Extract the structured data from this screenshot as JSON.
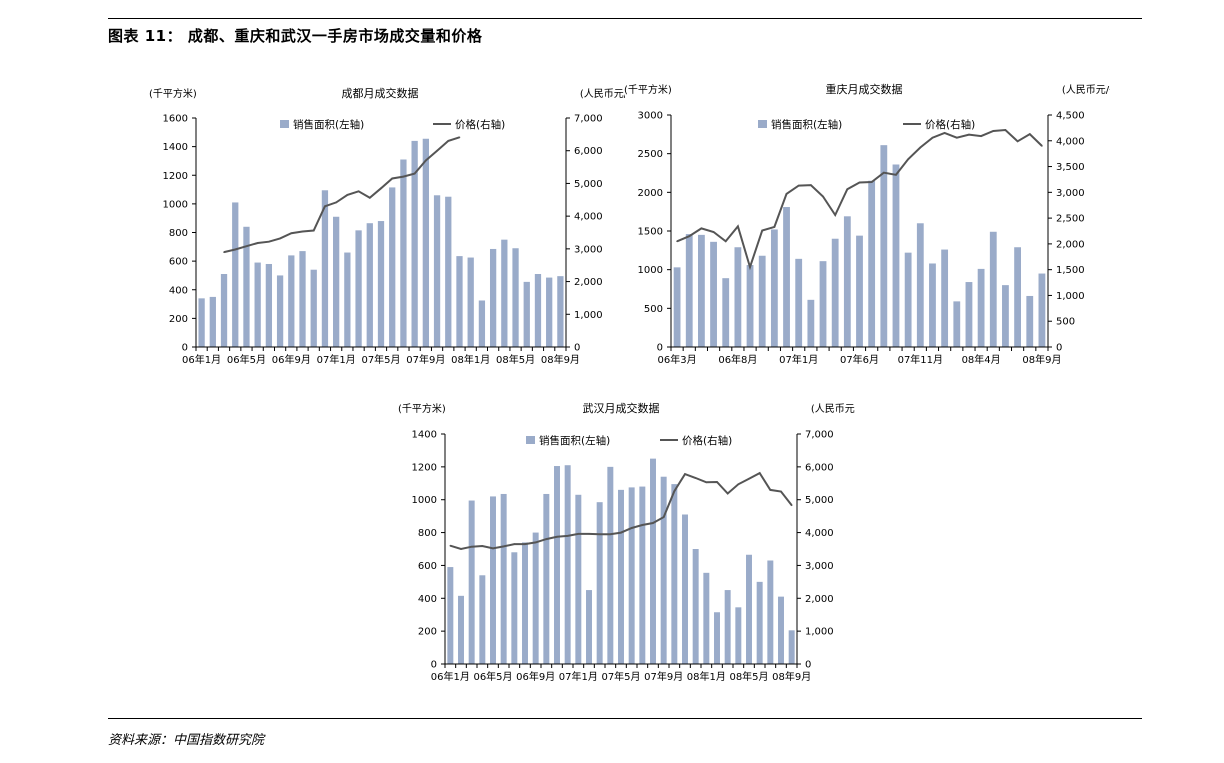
{
  "figure": {
    "title": "图表 11：  成都、重庆和武汉一手房市场成交量和价格",
    "source": "资料来源：中国指数研究院"
  },
  "legend": {
    "bar": "销售面积(左轴)",
    "line": "价格(右轴)"
  },
  "colors": {
    "bar": "#9aabc9",
    "line": "#555555"
  },
  "chart_data": [
    {
      "type": "bar+line",
      "title": "成都月成交数据",
      "ylabel_left": "(千平方米)",
      "ylabel_right": "(人民币元/平方米)",
      "ylim_left": [
        0,
        1600
      ],
      "ylim_right": [
        0,
        7000
      ],
      "yticks_left": [
        "0",
        "200",
        "400",
        "600",
        "800",
        "1000",
        "1200",
        "1400",
        "1600"
      ],
      "yticks_right": [
        "0",
        "1,000",
        "2,000",
        "3,000",
        "4,000",
        "5,000",
        "6,000",
        "7,000"
      ],
      "xtick_labels": [
        "06年1月",
        "06年5月",
        "06年9月",
        "07年1月",
        "07年5月",
        "07年9月",
        "08年1月",
        "08年5月",
        "08年9月"
      ],
      "xtick_every": 4,
      "legend_position": "top-center",
      "categories": [
        "06/01",
        "06/02",
        "06/03",
        "06/04",
        "06/05",
        "06/06",
        "06/07",
        "06/08",
        "06/09",
        "06/10",
        "06/11",
        "06/12",
        "07/01",
        "07/02",
        "07/03",
        "07/04",
        "07/05",
        "07/06",
        "07/07",
        "07/08",
        "07/09",
        "07/10",
        "07/11",
        "07/12",
        "08/01",
        "08/02",
        "08/03",
        "08/04",
        "08/05",
        "08/06",
        "08/07",
        "08/08",
        "08/09"
      ],
      "series": [
        {
          "name": "销售面积(左轴)",
          "axis": "left",
          "kind": "bar",
          "values": [
            340,
            350,
            510,
            1010,
            840,
            590,
            580,
            500,
            640,
            670,
            540,
            1095,
            910,
            660,
            815,
            865,
            880,
            1115,
            1310,
            1440,
            1455,
            1060,
            1050,
            635,
            625,
            325,
            685,
            750,
            690,
            455,
            510,
            485,
            495
          ]
        },
        {
          "name": "价格(右轴)",
          "axis": "right",
          "kind": "line",
          "values": [
            null,
            null,
            2900,
            2980,
            3080,
            3180,
            3220,
            3320,
            3480,
            3530,
            3560,
            4300,
            4420,
            4650,
            4760,
            4560,
            4850,
            5150,
            5210,
            5300,
            5700,
            6000,
            6300,
            6410,
            null,
            null,
            null,
            null,
            null,
            null,
            null,
            null,
            null
          ]
        }
      ]
    },
    {
      "type": "bar+line",
      "title": "重庆月成交数据",
      "ylabel_left": "(千平方米)",
      "ylabel_right": "(人民币元/平方米)",
      "ylim_left": [
        0,
        3000
      ],
      "ylim_right": [
        0,
        4500
      ],
      "yticks_left": [
        "0",
        "500",
        "1000",
        "1500",
        "2000",
        "2500",
        "3000"
      ],
      "yticks_right": [
        "0",
        "500",
        "1,000",
        "1,500",
        "2,000",
        "2,500",
        "3,000",
        "3,500",
        "4,000",
        "4,500"
      ],
      "xtick_labels": [
        "06年3月",
        "06年8月",
        "07年1月",
        "07年6月",
        "07年11月",
        "08年4月",
        "08年9月"
      ],
      "xtick_every": 5,
      "legend_position": "top-center",
      "categories": [
        "06/03",
        "06/04",
        "06/05",
        "06/06",
        "06/07",
        "06/08",
        "06/09",
        "06/10",
        "06/11",
        "06/12",
        "07/01",
        "07/02",
        "07/03",
        "07/04",
        "07/05",
        "07/06",
        "07/07",
        "07/08",
        "07/09",
        "07/10",
        "07/11",
        "07/12",
        "08/01",
        "08/02",
        "08/03",
        "08/04",
        "08/05",
        "08/06",
        "08/07",
        "08/08",
        "08/09"
      ],
      "series": [
        {
          "name": "销售面积(左轴)",
          "axis": "left",
          "kind": "bar",
          "values": [
            1030,
            1460,
            1450,
            1360,
            890,
            1290,
            1060,
            1180,
            1520,
            1810,
            1140,
            610,
            1110,
            1400,
            1690,
            1440,
            2150,
            2610,
            2360,
            1220,
            1600,
            1080,
            1260,
            590,
            840,
            1010,
            1490,
            800,
            1290,
            660,
            950
          ]
        },
        {
          "name": "价格(右轴)",
          "axis": "right",
          "kind": "line",
          "values": [
            2050,
            2150,
            2300,
            2230,
            2050,
            2340,
            1550,
            2260,
            2330,
            2970,
            3130,
            3140,
            2920,
            2560,
            3060,
            3190,
            3200,
            3380,
            3340,
            3640,
            3870,
            4060,
            4150,
            4060,
            4120,
            4090,
            4190,
            4210,
            3990,
            4130,
            3900
          ]
        }
      ]
    },
    {
      "type": "bar+line",
      "title": "武汉月成交数据",
      "ylabel_left": "(千平方米)",
      "ylabel_right": "(人民币元/平方米)",
      "ylim_left": [
        0,
        1400
      ],
      "ylim_right": [
        0,
        7000
      ],
      "yticks_left": [
        "0",
        "200",
        "400",
        "600",
        "800",
        "1000",
        "1200",
        "1400"
      ],
      "yticks_right": [
        "0",
        "1,000",
        "2,000",
        "3,000",
        "4,000",
        "5,000",
        "6,000",
        "7,000"
      ],
      "xtick_labels": [
        "06年1月",
        "06年5月",
        "06年9月",
        "07年1月",
        "07年5月",
        "07年9月",
        "08年1月",
        "08年5月",
        "08年9月"
      ],
      "xtick_every": 4,
      "legend_position": "top-center",
      "categories": [
        "06/01",
        "06/02",
        "06/03",
        "06/04",
        "06/05",
        "06/06",
        "06/07",
        "06/08",
        "06/09",
        "06/10",
        "06/11",
        "06/12",
        "07/01",
        "07/02",
        "07/03",
        "07/04",
        "07/05",
        "07/06",
        "07/07",
        "07/08",
        "07/09",
        "07/10",
        "07/11",
        "07/12",
        "08/01",
        "08/02",
        "08/03",
        "08/04",
        "08/05",
        "08/06",
        "08/07",
        "08/08",
        "08/09"
      ],
      "series": [
        {
          "name": "销售面积(左轴)",
          "axis": "left",
          "kind": "bar",
          "values": [
            590,
            415,
            995,
            540,
            1020,
            1035,
            680,
            740,
            800,
            1035,
            1205,
            1210,
            1030,
            450,
            985,
            1200,
            1060,
            1075,
            1080,
            1250,
            1140,
            1095,
            910,
            700,
            555,
            315,
            450,
            345,
            665,
            500,
            630,
            410,
            205
          ]
        },
        {
          "name": "价格(右轴)",
          "axis": "right",
          "kind": "line",
          "values": [
            3600,
            3500,
            3570,
            3590,
            3520,
            3580,
            3650,
            3650,
            3700,
            3800,
            3870,
            3900,
            3960,
            3960,
            3950,
            3950,
            4000,
            4140,
            4230,
            4290,
            4470,
            5260,
            5780,
            5660,
            5530,
            5540,
            5190,
            5470,
            5640,
            5810,
            5300,
            5250,
            4830
          ]
        }
      ]
    }
  ]
}
